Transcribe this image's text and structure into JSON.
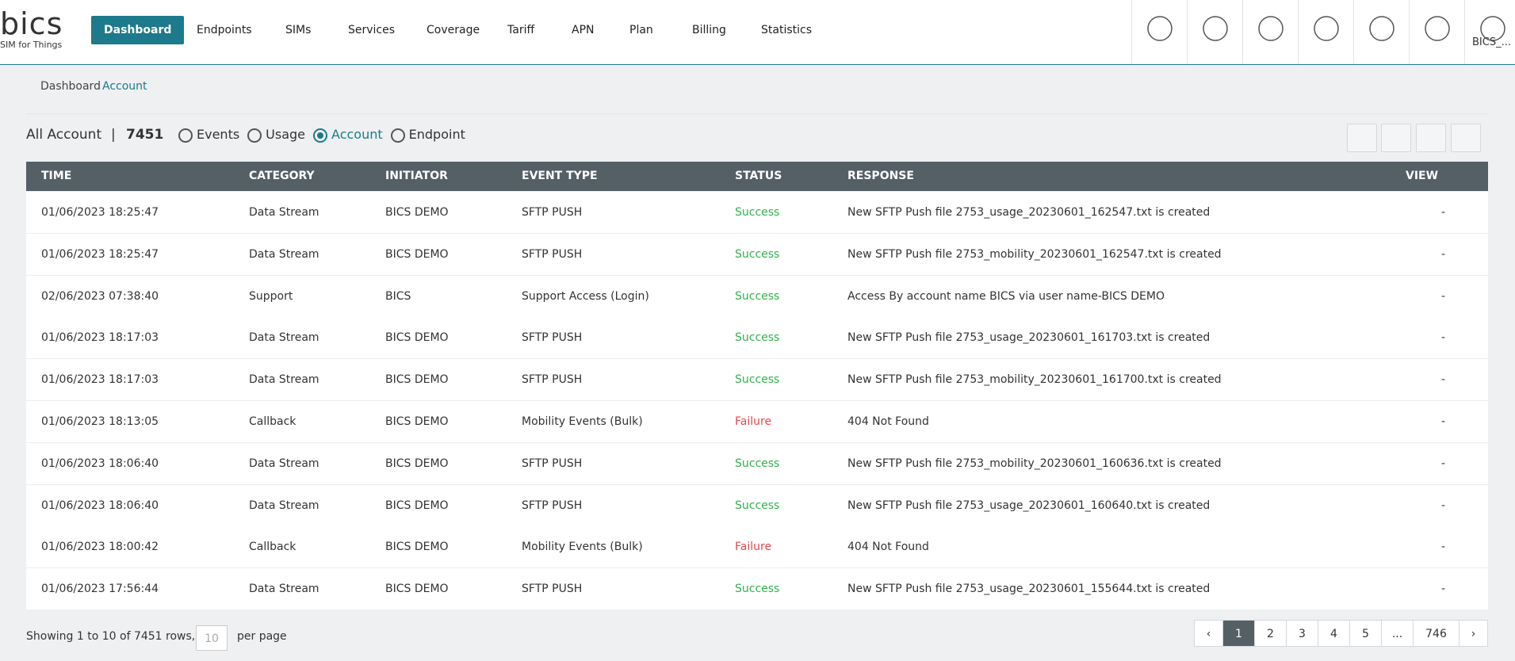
{
  "header": {
    "logo": "bics",
    "tagline": "SIM for Things",
    "nav": [
      "Dashboard",
      "Endpoints",
      "SIMs",
      "Services",
      "Coverage",
      "Tariff",
      "APN",
      "Plan",
      "Billing",
      "Statistics"
    ],
    "user": "BICS_..."
  },
  "breadcrumb": {
    "parent": "Dashboard",
    "current": "Account"
  },
  "toolbar": {
    "title": "All Account",
    "separator": "|",
    "count": "7451",
    "filters": [
      "Events",
      "Usage",
      "Account",
      "Endpoint"
    ],
    "selected": 2
  },
  "table": {
    "columns": [
      "TIME",
      "CATEGORY",
      "INITIATOR",
      "EVENT TYPE",
      "STATUS",
      "RESPONSE",
      "VIEW"
    ],
    "status_colors": {
      "Success": "#2fb34a",
      "Failure": "#e5484d"
    },
    "rows": [
      [
        "01/06/2023 18:25:47",
        "Data Stream",
        "BICS DEMO",
        "SFTP PUSH",
        "Success",
        "New SFTP Push file 2753_usage_20230601_162547.txt is created",
        "-"
      ],
      [
        "01/06/2023 18:25:47",
        "Data Stream",
        "BICS DEMO",
        "SFTP PUSH",
        "Success",
        "New SFTP Push file 2753_mobility_20230601_162547.txt is created",
        "-"
      ],
      [
        "02/06/2023 07:38:40",
        "Support",
        "BICS",
        "Support Access (Login)",
        "Success",
        "Access By account name BICS via user name-BICS DEMO",
        "-"
      ],
      [
        "01/06/2023 18:17:03",
        "Data Stream",
        "BICS DEMO",
        "SFTP PUSH",
        "Success",
        "New SFTP Push file 2753_usage_20230601_161703.txt is created",
        "-"
      ],
      [
        "01/06/2023 18:17:03",
        "Data Stream",
        "BICS DEMO",
        "SFTP PUSH",
        "Success",
        "New SFTP Push file 2753_mobility_20230601_161700.txt is created",
        "-"
      ],
      [
        "01/06/2023 18:13:05",
        "Callback",
        "BICS DEMO",
        "Mobility Events (Bulk)",
        "Failure",
        "404 Not Found",
        "-"
      ],
      [
        "01/06/2023 18:06:40",
        "Data Stream",
        "BICS DEMO",
        "SFTP PUSH",
        "Success",
        "New SFTP Push file 2753_mobility_20230601_160636.txt is created",
        "-"
      ],
      [
        "01/06/2023 18:06:40",
        "Data Stream",
        "BICS DEMO",
        "SFTP PUSH",
        "Success",
        "New SFTP Push file 2753_usage_20230601_160640.txt is created",
        "-"
      ],
      [
        "01/06/2023 18:00:42",
        "Callback",
        "BICS DEMO",
        "Mobility Events (Bulk)",
        "Failure",
        "404 Not Found",
        "-"
      ],
      [
        "01/06/2023 17:56:44",
        "Data Stream",
        "BICS DEMO",
        "SFTP PUSH",
        "Success",
        "New SFTP Push file 2753_usage_20230601_155644.txt is created",
        "-"
      ]
    ]
  },
  "footer": {
    "showing": "Showing 1 to 10 of 7451 rows,",
    "page_size": "10",
    "per_page": "per page",
    "pages": [
      "‹",
      "1",
      "2",
      "3",
      "4",
      "5",
      "...",
      "746",
      "›"
    ],
    "active_page": 1
  }
}
